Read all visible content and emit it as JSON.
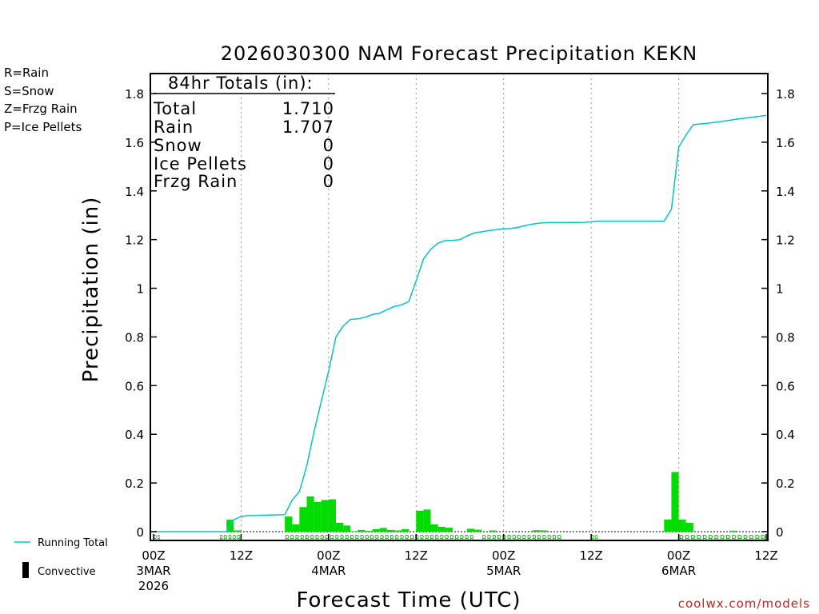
{
  "chart_data": {
    "type": "bar+line",
    "title": "2026030300 NAM Forecast Precipitation KEKN",
    "ylabel": "Precipitation (in)",
    "xlabel": "Forecast Time (UTC)",
    "watermark": "coolwx.com/models",
    "ylim": [
      0,
      1.8
    ],
    "xlim_hours": [
      0,
      84
    ],
    "y_ticks": [
      {
        "v": 0,
        "label": "0"
      },
      {
        "v": 0.2,
        "label": "0.2"
      },
      {
        "v": 0.4,
        "label": "0.4"
      },
      {
        "v": 0.6,
        "label": "0.6"
      },
      {
        "v": 0.8,
        "label": "0.8"
      },
      {
        "v": 1.0,
        "label": "1"
      },
      {
        "v": 1.2,
        "label": "1.2"
      },
      {
        "v": 1.4,
        "label": "1.4"
      },
      {
        "v": 1.6,
        "label": "1.6"
      },
      {
        "v": 1.8,
        "label": "1.8"
      }
    ],
    "x_ticks": [
      {
        "h": 0,
        "lines": [
          "00Z",
          "3MAR",
          "2026"
        ]
      },
      {
        "h": 12,
        "lines": [
          "12Z"
        ]
      },
      {
        "h": 24,
        "lines": [
          "00Z",
          "4MAR"
        ]
      },
      {
        "h": 36,
        "lines": [
          "12Z"
        ]
      },
      {
        "h": 48,
        "lines": [
          "00Z",
          "5MAR"
        ]
      },
      {
        "h": 60,
        "lines": [
          "12Z"
        ]
      },
      {
        "h": 72,
        "lines": [
          "00Z",
          "6MAR"
        ]
      },
      {
        "h": 84,
        "lines": [
          "12Z"
        ]
      }
    ],
    "gridlines_hours": [
      12,
      24,
      36,
      48,
      60,
      72
    ],
    "type_legend": [
      {
        "text": "R=Rain",
        "color": "#00cc00"
      },
      {
        "text": "S=Snow",
        "color": "#3344dd"
      },
      {
        "text": "Z=Frzg Rain",
        "color": "#ee8833"
      },
      {
        "text": "P=Ice Pellets",
        "color": "#dd2288"
      }
    ],
    "series_legend": {
      "running_total": {
        "label": "Running Total",
        "color": "#00c8c8"
      },
      "convective": {
        "label": "Convective",
        "color": "#000000"
      }
    },
    "totals": {
      "header": "84hr Totals (in):",
      "rows": [
        {
          "label": "Total",
          "value": "1.710"
        },
        {
          "label": "Rain",
          "value": "1.707"
        },
        {
          "label": "Snow",
          "value": "0"
        },
        {
          "label": "Ice Pellets",
          "value": "0"
        },
        {
          "label": "Frzg Rain",
          "value": "0"
        }
      ]
    },
    "bar_color": "#00dd00",
    "bar_width_hours": 1,
    "bars": [
      {
        "h": 11,
        "v": 0.049
      },
      {
        "h": 12,
        "v": 0.005
      },
      {
        "h": 19,
        "v": 0.062
      },
      {
        "h": 20,
        "v": 0.03
      },
      {
        "h": 21,
        "v": 0.101
      },
      {
        "h": 22,
        "v": 0.145
      },
      {
        "h": 23,
        "v": 0.122
      },
      {
        "h": 24,
        "v": 0.13
      },
      {
        "h": 25,
        "v": 0.133
      },
      {
        "h": 26,
        "v": 0.036
      },
      {
        "h": 27,
        "v": 0.025
      },
      {
        "h": 28,
        "v": 0.002
      },
      {
        "h": 29,
        "v": 0.007
      },
      {
        "h": 30,
        "v": 0.003
      },
      {
        "h": 31,
        "v": 0.01
      },
      {
        "h": 32,
        "v": 0.015
      },
      {
        "h": 33,
        "v": 0.007
      },
      {
        "h": 34,
        "v": 0.005
      },
      {
        "h": 35,
        "v": 0.01
      },
      {
        "h": 37,
        "v": 0.086
      },
      {
        "h": 38,
        "v": 0.091
      },
      {
        "h": 39,
        "v": 0.03
      },
      {
        "h": 40,
        "v": 0.02
      },
      {
        "h": 41,
        "v": 0.016
      },
      {
        "h": 44,
        "v": 0.012
      },
      {
        "h": 45,
        "v": 0.008
      },
      {
        "h": 47,
        "v": 0.005
      },
      {
        "h": 53,
        "v": 0.006
      },
      {
        "h": 54,
        "v": 0.005
      },
      {
        "h": 71,
        "v": 0.05
      },
      {
        "h": 72,
        "v": 0.245
      },
      {
        "h": 73,
        "v": 0.05
      },
      {
        "h": 74,
        "v": 0.036
      },
      {
        "h": 80,
        "v": 0.004
      }
    ],
    "running_total": [
      [
        0,
        0.0
      ],
      [
        10,
        0.0
      ],
      [
        11,
        0.049
      ],
      [
        12,
        0.062
      ],
      [
        13,
        0.066
      ],
      [
        14,
        0.067
      ],
      [
        16,
        0.068
      ],
      [
        18,
        0.07
      ],
      [
        19,
        0.13
      ],
      [
        20,
        0.165
      ],
      [
        21,
        0.27
      ],
      [
        22,
        0.41
      ],
      [
        23,
        0.535
      ],
      [
        24,
        0.66
      ],
      [
        25,
        0.8
      ],
      [
        26,
        0.845
      ],
      [
        27,
        0.872
      ],
      [
        28,
        0.874
      ],
      [
        29,
        0.881
      ],
      [
        30,
        0.892
      ],
      [
        31,
        0.897
      ],
      [
        32,
        0.912
      ],
      [
        33,
        0.925
      ],
      [
        34,
        0.932
      ],
      [
        35,
        0.946
      ],
      [
        36,
        1.03
      ],
      [
        37,
        1.12
      ],
      [
        38,
        1.16
      ],
      [
        39,
        1.185
      ],
      [
        40,
        1.196
      ],
      [
        41,
        1.197
      ],
      [
        42,
        1.2
      ],
      [
        43,
        1.215
      ],
      [
        44,
        1.227
      ],
      [
        45,
        1.232
      ],
      [
        46,
        1.237
      ],
      [
        47,
        1.241
      ],
      [
        48,
        1.244
      ],
      [
        49,
        1.246
      ],
      [
        50,
        1.25
      ],
      [
        51,
        1.258
      ],
      [
        52,
        1.264
      ],
      [
        53,
        1.268
      ],
      [
        54,
        1.27
      ],
      [
        56,
        1.27
      ],
      [
        59,
        1.271
      ],
      [
        61,
        1.275
      ],
      [
        65,
        1.275
      ],
      [
        70,
        1.275
      ],
      [
        71,
        1.325
      ],
      [
        72,
        1.58
      ],
      [
        73,
        1.63
      ],
      [
        74,
        1.672
      ],
      [
        76,
        1.678
      ],
      [
        78,
        1.686
      ],
      [
        80,
        1.695
      ],
      [
        82,
        1.702
      ],
      [
        84,
        1.71
      ]
    ],
    "ptype_row": [
      {
        "h": [
          0,
          1
        ],
        "text": "RR"
      },
      {
        "h": [
          9,
          12
        ],
        "text": "RRRRR"
      },
      {
        "h": [
          18,
          44
        ],
        "text": "RRRRRRRRRRRRRRRRRRRRRRRRRRRRRRRRRRRRRR"
      },
      {
        "h": [
          45,
          56
        ],
        "text": "RRRRRRRRRRRRRRRR"
      },
      {
        "h": [
          60,
          61
        ],
        "text": "RR"
      },
      {
        "h": [
          72,
          84
        ],
        "text": "RRRRRRRRRRRRRRR"
      }
    ]
  }
}
